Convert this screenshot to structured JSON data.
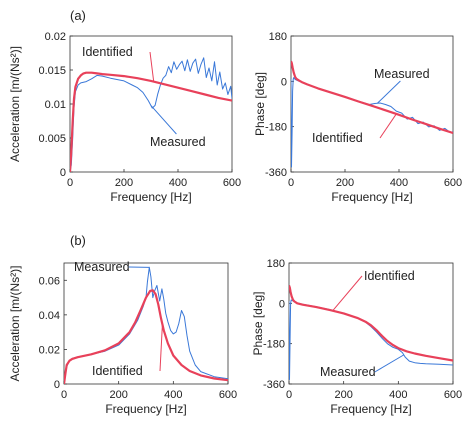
{
  "figure_labels": {
    "a": "(a)",
    "b": "(b)"
  },
  "colors": {
    "measured": "#3a78d8",
    "identified": "#e8415a",
    "axis": "#333333"
  },
  "chart_data": [
    {
      "id": "a-accel",
      "type": "line",
      "xlabel": "Frequency [Hz]",
      "ylabel": "Acceleration [m/(Ns²)]",
      "xlim": [
        0,
        600
      ],
      "ylim": [
        0,
        0.02
      ],
      "xticks": [
        0,
        200,
        400,
        600
      ],
      "yticks": [
        0,
        0.005,
        0.01,
        0.015,
        0.02
      ],
      "ytick_labels": [
        "0",
        "0.005",
        "0.01",
        "0.015",
        "0.02"
      ],
      "annotations": [
        {
          "text": "Identified",
          "series": "identified",
          "at_x": 310
        },
        {
          "text": "Measured",
          "series": "measured",
          "at_x": 300
        }
      ],
      "series": [
        {
          "key": "identified",
          "color": "#e8415a",
          "x": [
            0,
            5,
            10,
            15,
            20,
            30,
            40,
            50,
            60,
            80,
            100,
            120,
            150,
            200,
            250,
            300,
            350,
            400,
            450,
            500,
            550,
            600
          ],
          "y": [
            0,
            0.003,
            0.0075,
            0.0108,
            0.0125,
            0.0137,
            0.0142,
            0.0145,
            0.0146,
            0.0146,
            0.0145,
            0.0144,
            0.0143,
            0.0141,
            0.0138,
            0.0134,
            0.0129,
            0.0124,
            0.0119,
            0.0114,
            0.0109,
            0.0105
          ]
        },
        {
          "key": "measured",
          "color": "#3a78d8",
          "x": [
            0,
            5,
            10,
            15,
            20,
            30,
            40,
            60,
            80,
            100,
            120,
            150,
            200,
            230,
            250,
            270,
            290,
            305,
            315,
            325,
            335,
            345,
            355,
            365,
            375,
            385,
            395,
            405,
            415,
            425,
            435,
            445,
            455,
            465,
            475,
            485,
            495,
            505,
            515,
            525,
            535,
            545,
            555,
            565,
            575,
            585,
            595,
            600
          ],
          "y": [
            0,
            0.001,
            0.005,
            0.0095,
            0.0118,
            0.0128,
            0.0131,
            0.0133,
            0.0137,
            0.0142,
            0.0141,
            0.0138,
            0.0134,
            0.0128,
            0.0124,
            0.0117,
            0.0105,
            0.0094,
            0.0098,
            0.0115,
            0.0128,
            0.0138,
            0.0142,
            0.0155,
            0.0146,
            0.0162,
            0.0151,
            0.0158,
            0.0163,
            0.0149,
            0.0165,
            0.0148,
            0.016,
            0.0166,
            0.0145,
            0.0158,
            0.0168,
            0.0139,
            0.0153,
            0.0134,
            0.0162,
            0.0128,
            0.0147,
            0.0122,
            0.0131,
            0.0114,
            0.0126,
            0.0108
          ]
        }
      ]
    },
    {
      "id": "a-phase",
      "type": "line",
      "xlabel": "Frequency [Hz]",
      "ylabel": "Phase [deg]",
      "xlim": [
        0,
        600
      ],
      "ylim": [
        -360,
        180
      ],
      "xticks": [
        0,
        200,
        400,
        600
      ],
      "yticks": [
        -360,
        -180,
        0,
        180
      ],
      "ytick_labels": [
        "-360",
        "-180",
        "0",
        "180"
      ],
      "annotations": [
        {
          "text": "Measured",
          "series": "measured",
          "at_x": 320
        },
        {
          "text": "Identified",
          "series": "identified",
          "at_x": 390
        }
      ],
      "series": [
        {
          "key": "identified",
          "color": "#e8415a",
          "x": [
            0,
            3,
            6,
            10,
            15,
            20,
            30,
            40,
            60,
            80,
            100,
            150,
            200,
            250,
            300,
            350,
            400,
            450,
            500,
            550,
            600
          ],
          "y": [
            80,
            72,
            55,
            35,
            18,
            10,
            3,
            -3,
            -12,
            -20,
            -28,
            -45,
            -62,
            -80,
            -97,
            -115,
            -133,
            -152,
            -170,
            -188,
            -205
          ]
        },
        {
          "key": "measured",
          "color": "#3a78d8",
          "x": [
            0,
            2,
            4,
            6,
            8,
            10,
            12,
            15,
            20,
            30,
            40,
            60,
            80,
            100,
            150,
            200,
            250,
            290,
            310,
            330,
            350,
            370,
            390,
            410,
            430,
            450,
            470,
            490,
            510,
            530,
            550,
            570,
            590,
            600
          ],
          "y": [
            10,
            -340,
            -200,
            -40,
            8,
            15,
            12,
            8,
            5,
            0,
            -4,
            -12,
            -20,
            -28,
            -45,
            -62,
            -79,
            -92,
            -88,
            -86,
            -92,
            -100,
            -118,
            -126,
            -150,
            -143,
            -168,
            -162,
            -181,
            -176,
            -195,
            -187,
            -203,
            -200
          ]
        }
      ]
    },
    {
      "id": "b-accel",
      "type": "line",
      "xlabel": "Frequency [Hz]",
      "ylabel": "Acceleration [m/(Ns²)]",
      "xlim": [
        0,
        600
      ],
      "ylim": [
        0,
        0.07
      ],
      "xticks": [
        0,
        200,
        400,
        600
      ],
      "yticks": [
        0,
        0.02,
        0.04,
        0.06
      ],
      "ytick_labels": [
        "0",
        "0.02",
        "0.04",
        "0.06"
      ],
      "annotations": [
        {
          "text": "Measured",
          "series": "measured",
          "at_x": 312
        },
        {
          "text": "Identified",
          "series": "identified",
          "at_x": 360
        }
      ],
      "series": [
        {
          "key": "identified",
          "color": "#e8415a",
          "x": [
            0,
            5,
            10,
            20,
            30,
            50,
            100,
            150,
            200,
            240,
            260,
            280,
            300,
            315,
            325,
            335,
            345,
            355,
            365,
            380,
            400,
            430,
            460,
            500,
            550,
            600
          ],
          "y": [
            0,
            0.006,
            0.011,
            0.0135,
            0.0145,
            0.0155,
            0.0172,
            0.0195,
            0.0235,
            0.03,
            0.0355,
            0.0425,
            0.05,
            0.0538,
            0.0542,
            0.052,
            0.046,
            0.038,
            0.031,
            0.0235,
            0.0165,
            0.011,
            0.0075,
            0.005,
            0.0032,
            0.0022
          ]
        },
        {
          "key": "measured",
          "color": "#3a78d8",
          "x": [
            0,
            5,
            10,
            20,
            30,
            50,
            100,
            150,
            200,
            240,
            270,
            290,
            300,
            305,
            312,
            318,
            325,
            332,
            340,
            350,
            358,
            365,
            372,
            380,
            390,
            400,
            410,
            420,
            430,
            440,
            450,
            460,
            480,
            500,
            550,
            600
          ],
          "y": [
            0,
            0.005,
            0.01,
            0.0135,
            0.0148,
            0.0156,
            0.0172,
            0.019,
            0.0225,
            0.029,
            0.037,
            0.045,
            0.05,
            0.059,
            0.0675,
            0.062,
            0.05,
            0.054,
            0.057,
            0.048,
            0.055,
            0.049,
            0.041,
            0.036,
            0.031,
            0.029,
            0.03,
            0.035,
            0.0425,
            0.039,
            0.028,
            0.019,
            0.011,
            0.0072,
            0.0042,
            0.003
          ]
        }
      ]
    },
    {
      "id": "b-phase",
      "type": "line",
      "xlabel": "Frequency [Hz]",
      "ylabel": "Phase [deg]",
      "xlim": [
        0,
        600
      ],
      "ylim": [
        -360,
        180
      ],
      "xticks": [
        0,
        200,
        400,
        600
      ],
      "yticks": [
        -360,
        -180,
        0,
        180
      ],
      "ytick_labels": [
        "-360",
        "-180",
        "0",
        "180"
      ],
      "annotations": [
        {
          "text": "Identified",
          "series": "identified",
          "at_x": 160
        },
        {
          "text": "Measured",
          "series": "measured",
          "at_x": 420
        }
      ],
      "series": [
        {
          "key": "identified",
          "color": "#e8415a",
          "x": [
            0,
            3,
            6,
            10,
            15,
            20,
            30,
            50,
            100,
            150,
            200,
            250,
            280,
            300,
            320,
            340,
            360,
            380,
            400,
            430,
            460,
            500,
            550,
            600
          ],
          "y": [
            80,
            70,
            50,
            30,
            15,
            8,
            0,
            -6,
            -17,
            -30,
            -45,
            -65,
            -82,
            -98,
            -120,
            -145,
            -168,
            -186,
            -200,
            -214,
            -224,
            -234,
            -245,
            -255
          ]
        },
        {
          "key": "measured",
          "color": "#3a78d8",
          "x": [
            0,
            2,
            4,
            6,
            8,
            10,
            15,
            20,
            30,
            50,
            100,
            150,
            200,
            250,
            280,
            300,
            320,
            340,
            360,
            380,
            400,
            415,
            425,
            440,
            460,
            480,
            500,
            550,
            600
          ],
          "y": [
            10,
            -340,
            -150,
            0,
            15,
            14,
            10,
            6,
            2,
            -4,
            -15,
            -28,
            -44,
            -66,
            -84,
            -104,
            -128,
            -155,
            -180,
            -196,
            -205,
            -220,
            -240,
            -258,
            -265,
            -268,
            -270,
            -272,
            -275
          ]
        }
      ]
    }
  ]
}
